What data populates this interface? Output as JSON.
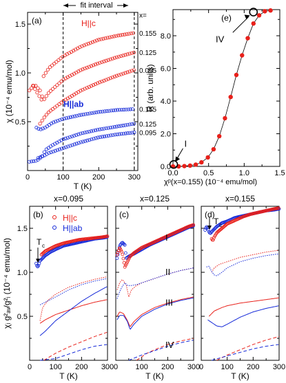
{
  "colors": {
    "red": "#e8201a",
    "blue": "#1428d8",
    "black": "#000000"
  },
  "header": {
    "fit_interval": "fit interval"
  },
  "chart_data": [
    {
      "panel": "(a)",
      "type": "scatter",
      "xlabel": "T  (K)",
      "ylabel": "χ  (10⁻⁴ emu/mol)",
      "xlim": [
        0,
        310
      ],
      "ylim": [
        0,
        1.62
      ],
      "xticks": [
        "0",
        "100",
        "200",
        "300"
      ],
      "yticks": [
        "0.5",
        "1.0",
        "1.5"
      ],
      "ytick_values": [
        0.5,
        1.0,
        1.5
      ],
      "fit_lines_at": [
        100,
        300
      ],
      "x_eq_label": "x=",
      "labels": {
        "hc": "H||c",
        "hab": "H||ab"
      },
      "series": [
        {
          "group": "hc",
          "label": "0.155",
          "color": "red",
          "T": [
            15,
            40,
            42,
            60,
            100,
            150,
            200,
            250,
            300
          ],
          "chi": [
            0.87,
            0.72,
            0.95,
            1.05,
            1.17,
            1.27,
            1.34,
            1.38,
            1.41
          ]
        },
        {
          "group": "hc",
          "label": "0.125",
          "color": "red",
          "T": [
            5,
            20,
            35,
            45,
            60,
            100,
            150,
            200,
            250,
            300
          ],
          "chi": [
            0.82,
            0.88,
            0.82,
            0.72,
            0.8,
            0.93,
            1.03,
            1.1,
            1.16,
            1.21
          ]
        },
        {
          "group": "hc",
          "label": "0.095",
          "color": "red",
          "T": [
            35,
            50,
            60,
            100,
            150,
            200,
            250,
            300
          ],
          "chi": [
            0.48,
            0.56,
            0.6,
            0.71,
            0.82,
            0.9,
            0.97,
            1.03
          ]
        },
        {
          "group": "hab",
          "label": "0.155",
          "color": "blue",
          "T": [
            25,
            35,
            50,
            70,
            100,
            150,
            200,
            250,
            300
          ],
          "chi": [
            0.44,
            0.42,
            0.44,
            0.49,
            0.53,
            0.57,
            0.6,
            0.62,
            0.63
          ]
        },
        {
          "group": "hab",
          "label": "0.125",
          "color": "blue",
          "T": [
            5,
            25,
            40,
            50,
            70,
            100,
            150,
            200,
            250,
            300
          ],
          "chi": [
            0.09,
            0.1,
            0.14,
            0.21,
            0.26,
            0.32,
            0.38,
            0.42,
            0.45,
            0.48
          ]
        },
        {
          "group": "hab",
          "label": "0.095",
          "color": "blue",
          "T": [
            30,
            45,
            60,
            100,
            150,
            200,
            250,
            300
          ],
          "chi": [
            0.13,
            0.15,
            0.18,
            0.23,
            0.29,
            0.34,
            0.37,
            0.39
          ]
        }
      ]
    },
    {
      "panel": "(e)",
      "type": "line",
      "xlabel": "χᵖ(x=0.155)  (10⁻⁴ emu/mol)",
      "ylabel": "R (arb. units)",
      "xlim": [
        0,
        1.5
      ],
      "ylim": [
        0,
        9.6
      ],
      "xticks": [
        "0.0",
        "0.5",
        "1.0",
        "1.5"
      ],
      "yticks": [
        "0.0",
        "2.0",
        "4.0",
        "6.0",
        "8.0"
      ],
      "ytick_values": [
        0,
        2,
        4,
        6,
        8
      ],
      "x": [
        0.0,
        0.08,
        0.16,
        0.24,
        0.32,
        0.4,
        0.49,
        0.57,
        0.65,
        0.73,
        0.81,
        0.89,
        0.97,
        1.05,
        1.13,
        1.21,
        1.29,
        1.37
      ],
      "y": [
        0.0,
        0.0,
        0.02,
        0.05,
        0.11,
        0.25,
        0.55,
        1.05,
        1.85,
        2.95,
        4.25,
        5.6,
        6.8,
        7.85,
        8.75,
        9.25,
        9.5,
        9.55
      ],
      "marked": [
        {
          "label": "I",
          "x": 0.01,
          "y": 0.12
        },
        {
          "label": "IV",
          "x": 1.13,
          "y": 9.45
        }
      ]
    },
    {
      "type": "line",
      "shared_xlabel": "T  (K)",
      "shared_ylabel": "χᵢ g²ₐᵥ/g²ᵢ (10⁻⁴ emu/mol)",
      "xlim": [
        0,
        300
      ],
      "ylim": [
        0,
        1.75
      ],
      "xticks": [
        "0",
        "100",
        "200",
        "300"
      ],
      "yticks": [
        "0.5",
        "1.0",
        "1.5"
      ],
      "ytick_values": [
        0.5,
        1.0,
        1.5
      ],
      "legend": {
        "hc": "H||c",
        "hab": "H||ab"
      },
      "component_labels": [
        "I",
        "II",
        "III",
        "IV"
      ],
      "tc_label": "T",
      "tc_sub": "c",
      "panels": [
        {
          "panel": "(b)",
          "title": "x=0.095",
          "tc_at": 30,
          "I_red_markers": {
            "T": [
              45,
              60,
              80,
              100,
              130,
              160,
              190,
              220,
              250,
              280,
              300
            ],
            "chi": [
              1.2,
              1.24,
              1.27,
              1.3,
              1.33,
              1.35,
              1.37,
              1.38,
              1.39,
              1.4,
              1.41
            ]
          },
          "I_blue_markers": {
            "T": [
              25,
              30,
              35,
              40,
              50,
              60,
              80,
              100,
              130,
              160,
              190,
              220,
              250,
              280,
              300
            ],
            "chi": [
              1.1,
              1.06,
              1.08,
              1.13,
              1.16,
              1.19,
              1.23,
              1.26,
              1.3,
              1.32,
              1.34,
              1.36,
              1.38,
              1.39,
              1.4
            ]
          },
          "II_red": {
            "T": [
              40,
              50,
              70,
              100,
              150,
              200,
              250,
              300
            ],
            "chi": [
              0.45,
              0.6,
              0.68,
              0.75,
              0.83,
              0.88,
              0.92,
              0.95
            ]
          },
          "II_blue": {
            "T": [
              40,
              60,
              100,
              150,
              200,
              250,
              300
            ],
            "chi": [
              0.63,
              0.66,
              0.72,
              0.8,
              0.86,
              0.9,
              0.93
            ]
          },
          "III_red": {
            "T": [
              40,
              60,
              100,
              150,
              200,
              250,
              300
            ],
            "chi": [
              0.42,
              0.46,
              0.52,
              0.57,
              0.62,
              0.66,
              0.69
            ]
          },
          "III_blue": {
            "T": [
              40,
              60,
              100,
              150,
              200,
              250,
              300
            ],
            "chi": [
              0.28,
              0.33,
              0.45,
              0.56,
              0.67,
              0.76,
              0.84
            ]
          },
          "IV_red": {
            "T": [
              55,
              100,
              150,
              200,
              250,
              300
            ],
            "chi": [
              0.0,
              0.08,
              0.15,
              0.21,
              0.27,
              0.32
            ]
          },
          "IV_blue": {
            "T": [
              40,
              100,
              150,
              200,
              250,
              300
            ],
            "chi": [
              0.0,
              0.02,
              0.07,
              0.12,
              0.16,
              0.18
            ]
          }
        },
        {
          "panel": "(c)",
          "title": "x=0.125",
          "tc_at": null,
          "I_red_markers": {
            "T": [
              5,
              15,
              25,
              35,
              45,
              55,
              70,
              100,
              130,
              160,
              190,
              220,
              250,
              280,
              300
            ],
            "chi": [
              1.2,
              1.28,
              1.22,
              1.06,
              1.12,
              1.18,
              1.22,
              1.28,
              1.32,
              1.36,
              1.4,
              1.44,
              1.48,
              1.52,
              1.54
            ]
          },
          "I_blue_markers": {
            "T": [
              5,
              15,
              25,
              35,
              40,
              50,
              70,
              100,
              130,
              160,
              190,
              220,
              250,
              280,
              300
            ],
            "chi": [
              1.16,
              1.3,
              1.34,
              1.31,
              1.16,
              1.18,
              1.21,
              1.26,
              1.31,
              1.35,
              1.39,
              1.43,
              1.47,
              1.51,
              1.53
            ]
          },
          "II_red": {
            "T": [
              5,
              15,
              25,
              40,
              50,
              60,
              80,
              100,
              150,
              200,
              250,
              300
            ],
            "chi": [
              0.8,
              0.88,
              0.92,
              0.86,
              0.72,
              0.8,
              0.85,
              0.88,
              0.93,
              0.98,
              1.02,
              1.05
            ]
          },
          "II_blue": {
            "T": [
              5,
              15,
              25,
              35,
              45,
              60,
              80,
              100,
              150,
              200,
              250,
              300
            ],
            "chi": [
              0.7,
              0.78,
              0.84,
              0.88,
              0.85,
              0.85,
              0.86,
              0.88,
              0.93,
              0.98,
              1.02,
              1.05
            ]
          },
          "III_red": {
            "T": [
              5,
              15,
              30,
              45,
              55,
              70,
              100,
              150,
              200,
              250,
              300
            ],
            "chi": [
              0.5,
              0.55,
              0.53,
              0.45,
              0.38,
              0.44,
              0.52,
              0.6,
              0.65,
              0.69,
              0.72
            ]
          },
          "III_blue": {
            "T": [
              5,
              15,
              30,
              45,
              55,
              70,
              100,
              150,
              200,
              250,
              300
            ],
            "chi": [
              0.46,
              0.51,
              0.51,
              0.44,
              0.35,
              0.41,
              0.5,
              0.58,
              0.64,
              0.68,
              0.71
            ]
          },
          "IV_red": {
            "T": [
              80,
              120,
              150,
              200,
              250,
              300
            ],
            "chi": [
              0.0,
              0.08,
              0.12,
              0.18,
              0.22,
              0.25
            ]
          },
          "IV_blue": {
            "T": [
              50,
              100,
              150,
              200,
              250,
              300
            ],
            "chi": [
              0.0,
              0.06,
              0.11,
              0.16,
              0.2,
              0.23
            ]
          }
        },
        {
          "panel": "(d)",
          "title": "x=0.155",
          "tc_at": 25,
          "I_red_markers": {
            "T": [
              40,
              45,
              50,
              60,
              80,
              100,
              130,
              160,
              190,
              220,
              250,
              280,
              300
            ],
            "chi": [
              1.38,
              1.36,
              1.4,
              1.45,
              1.5,
              1.55,
              1.59,
              1.63,
              1.66,
              1.68,
              1.7,
              1.72,
              1.73
            ]
          },
          "I_blue_markers": {
            "T": [
              15,
              20,
              25,
              30,
              35,
              40,
              50,
              60,
              80,
              100,
              130,
              160,
              190,
              220,
              250,
              280,
              300
            ],
            "chi": [
              1.48,
              1.52,
              1.5,
              1.46,
              1.44,
              1.46,
              1.49,
              1.52,
              1.56,
              1.58,
              1.62,
              1.64,
              1.66,
              1.68,
              1.7,
              1.71,
              1.72
            ]
          },
          "II_red": {
            "T": [
              40,
              50,
              70,
              100,
              150,
              200,
              250,
              300
            ],
            "chi": [
              1.0,
              1.05,
              1.09,
              1.12,
              1.17,
              1.2,
              1.23,
              1.25
            ]
          },
          "II_blue": {
            "T": [
              20,
              30,
              40,
              50,
              60,
              80,
              100,
              150,
              200,
              250,
              300
            ],
            "chi": [
              1.06,
              1.07,
              1.01,
              0.97,
              0.96,
              1.0,
              1.05,
              1.12,
              1.16,
              1.19,
              1.21
            ]
          },
          "III_red": {
            "T": [
              30,
              50,
              80,
              100,
              150,
              200,
              250,
              300
            ],
            "chi": [
              0.5,
              0.56,
              0.6,
              0.62,
              0.65,
              0.67,
              0.69,
              0.71
            ]
          },
          "III_blue": {
            "T": [
              25,
              40,
              60,
              80,
              100,
              150,
              200,
              250,
              300
            ],
            "chi": [
              0.46,
              0.43,
              0.39,
              0.38,
              0.41,
              0.49,
              0.55,
              0.59,
              0.62
            ]
          },
          "IV_red": {
            "T": [
              60,
              100,
              150,
              200,
              250,
              300
            ],
            "chi": [
              0.0,
              0.06,
              0.12,
              0.18,
              0.23,
              0.27
            ]
          },
          "IV_blue": {
            "T": [
              40,
              100,
              150,
              200,
              250,
              300
            ],
            "chi": [
              0.0,
              0.05,
              0.09,
              0.13,
              0.16,
              0.18
            ]
          }
        }
      ]
    }
  ]
}
